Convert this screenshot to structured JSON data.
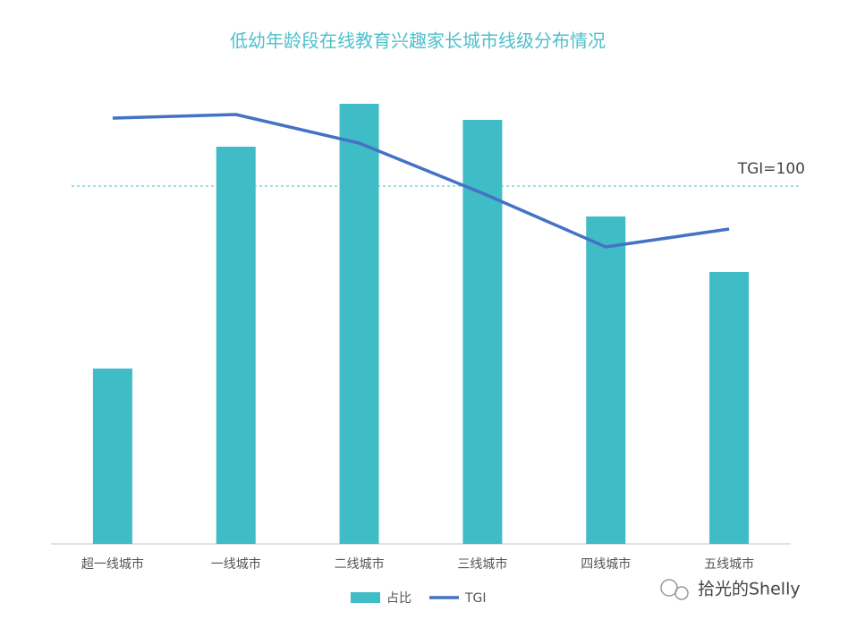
{
  "chart_data": {
    "type": "bar",
    "title": "低幼年龄段在线教育兴趣家长城市线级分布情况",
    "categories": [
      "超一线城市",
      "一线城市",
      "二线城市",
      "三线城市",
      "四线城市",
      "五线城市"
    ],
    "series": [
      {
        "name": "占比",
        "type": "bar",
        "color": "#40bcc7",
        "values": [
          9.8,
          22.2,
          24.6,
          23.7,
          18.3,
          15.2
        ]
      },
      {
        "name": "TGI",
        "type": "line",
        "axis": "y2",
        "color": "#4472c4",
        "values": [
          119,
          120,
          112,
          98,
          83,
          88
        ]
      }
    ],
    "ylim": [
      0,
      25
    ],
    "y2lim": [
      0,
      125
    ],
    "reference": {
      "axis": "y2",
      "value": 100,
      "label": "TGI=100",
      "color": "#40bcc7"
    },
    "legend": "bottom",
    "watermark": "拾光的Shelly"
  }
}
